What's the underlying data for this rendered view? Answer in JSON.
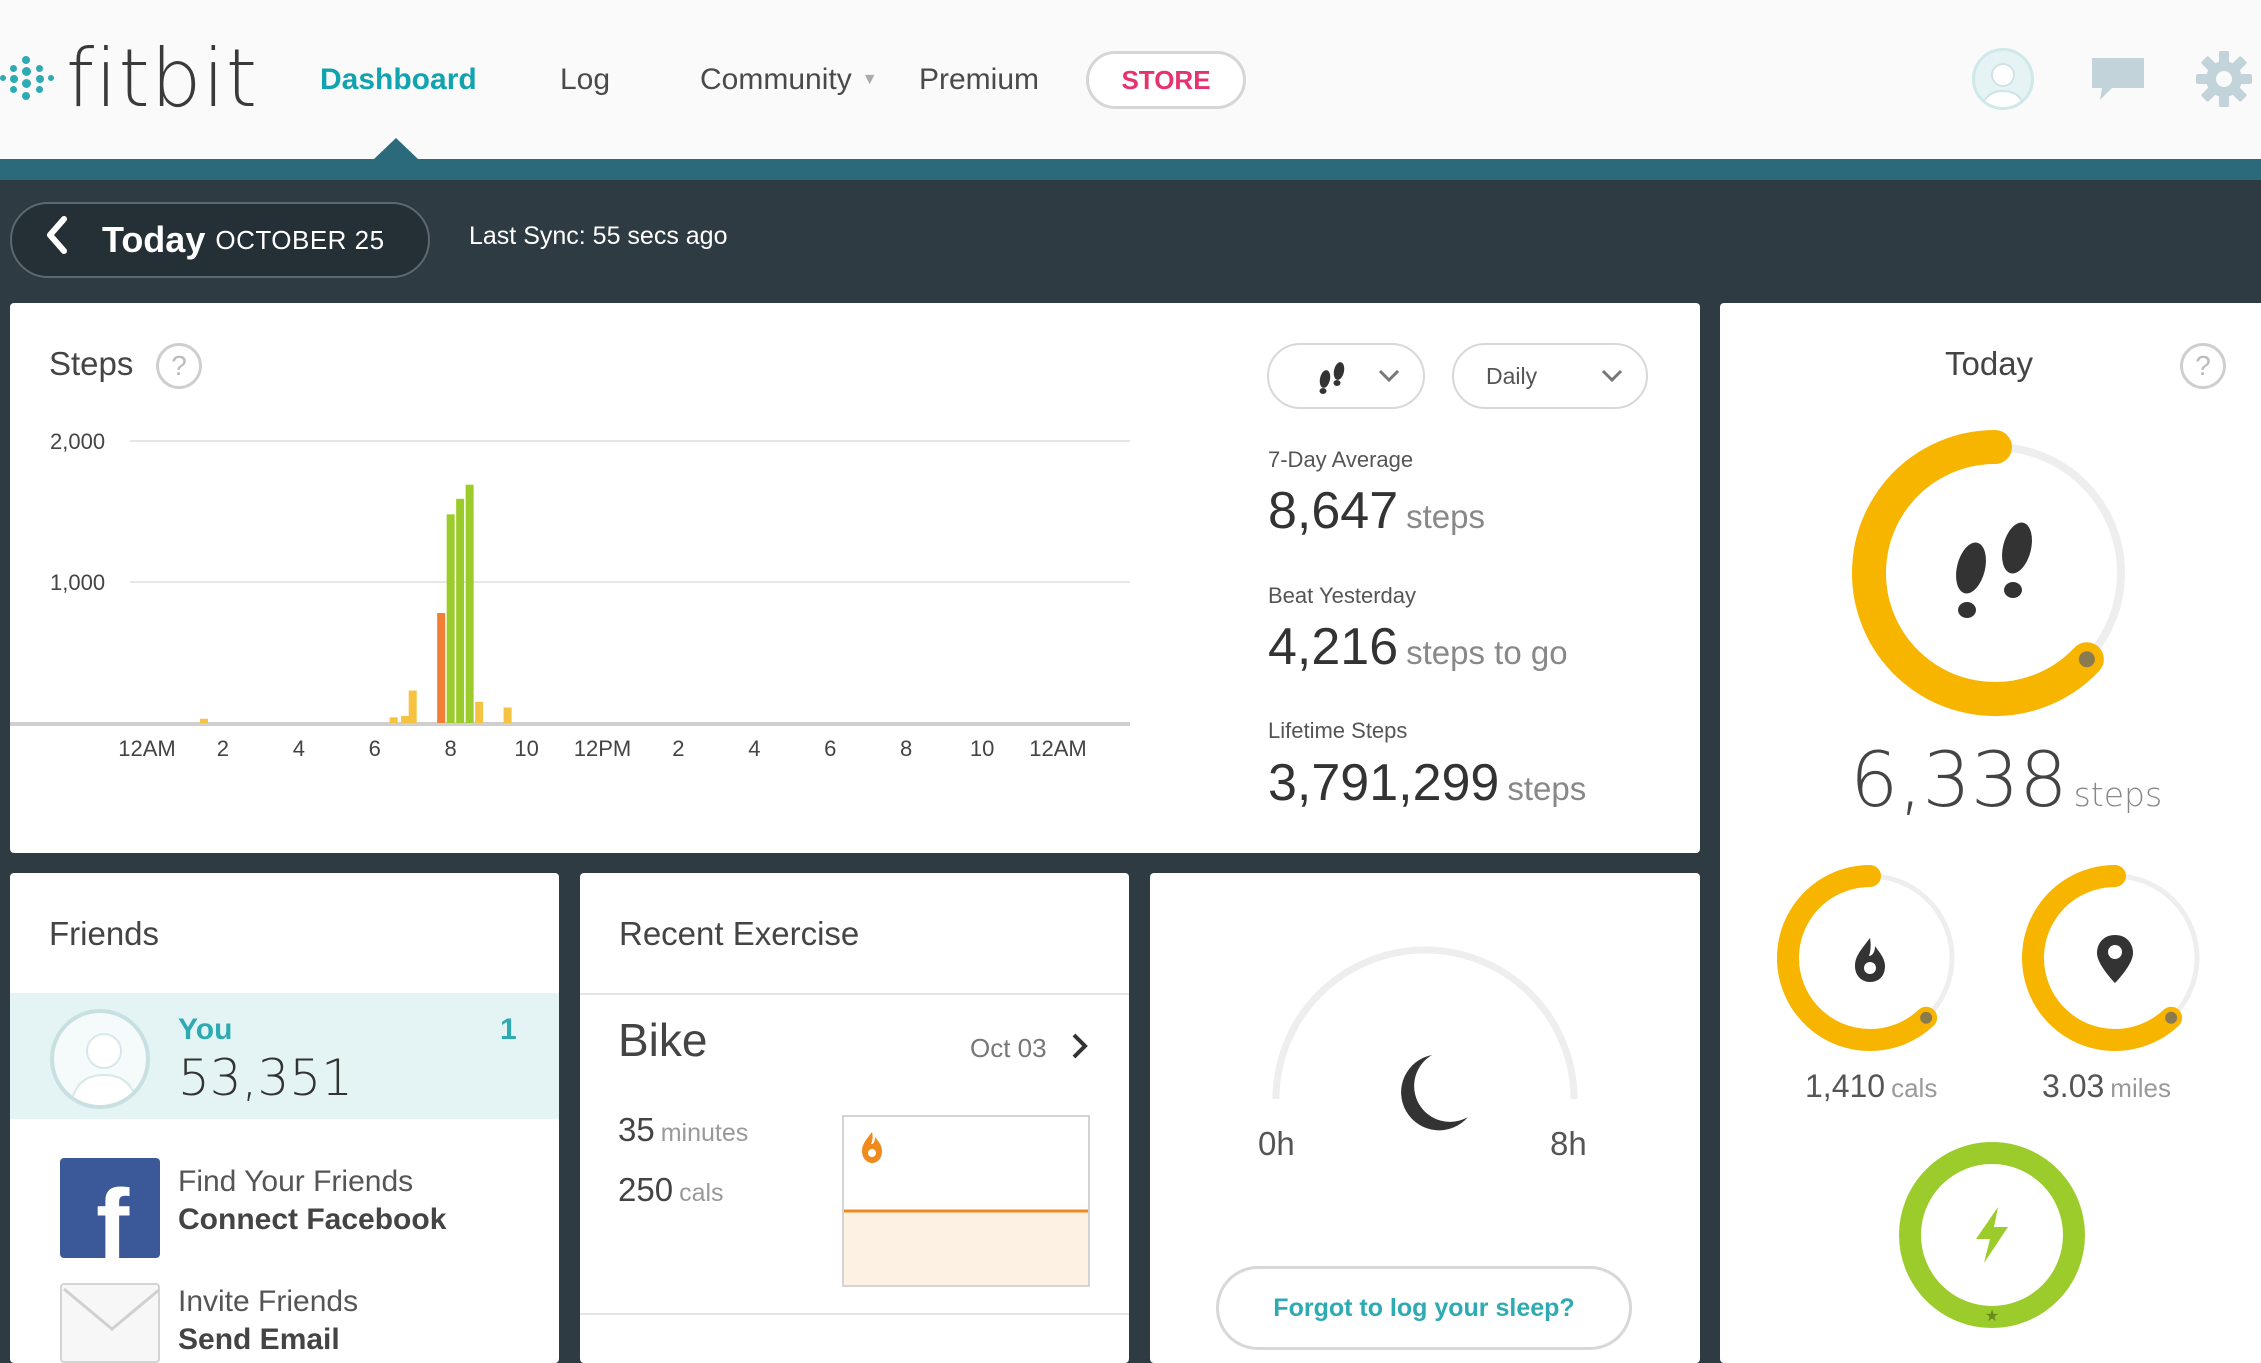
{
  "header": {
    "logo_text": "fitbit",
    "nav": {
      "dashboard": "Dashboard",
      "log": "Log",
      "community": "Community",
      "premium": "Premium",
      "store": "STORE"
    },
    "icons": [
      "avatar-icon",
      "message-icon",
      "gear-icon"
    ]
  },
  "datebar": {
    "back_icon": "chevron-left-icon",
    "today": "Today",
    "date": "OCTOBER 25",
    "last_sync": "Last Sync: 55 secs ago"
  },
  "steps_card": {
    "title": "Steps",
    "help": "?",
    "activity_dropdown_icon": "footsteps-icon",
    "period": "Daily",
    "metrics": [
      {
        "label": "7-Day Average",
        "value": "8,647",
        "unit": "steps"
      },
      {
        "label": "Beat Yesterday",
        "value": "4,216",
        "unit": "steps to go"
      },
      {
        "label": "Lifetime Steps",
        "value": "3,791,299",
        "unit": "steps"
      }
    ]
  },
  "chart_data": {
    "type": "bar",
    "title": "Steps",
    "xlabel": "",
    "ylabel": "",
    "ylim": [
      0,
      2000
    ],
    "y_ticks": [
      "2,000",
      "1,000"
    ],
    "y_tick_values": [
      2000,
      1000
    ],
    "x_tick_labels": [
      "12AM",
      "2",
      "4",
      "6",
      "8",
      "10",
      "12PM",
      "2",
      "4",
      "6",
      "8",
      "10",
      "12AM"
    ],
    "x_tick_hours": [
      0,
      2,
      4,
      6,
      8,
      10,
      12,
      14,
      16,
      18,
      20,
      22,
      24
    ],
    "grid": true,
    "bars": [
      {
        "hour": 1.5,
        "value": 30,
        "color": "#f5c242"
      },
      {
        "hour": 6.5,
        "value": 40,
        "color": "#f5c242"
      },
      {
        "hour": 6.8,
        "value": 50,
        "color": "#f5c242"
      },
      {
        "hour": 7.0,
        "value": 230,
        "color": "#f5c242"
      },
      {
        "hour": 7.75,
        "value": 780,
        "color": "#f07f35"
      },
      {
        "hour": 8.0,
        "value": 1480,
        "color": "#9ccc2c"
      },
      {
        "hour": 8.25,
        "value": 1590,
        "color": "#9ccc2c"
      },
      {
        "hour": 8.5,
        "value": 1690,
        "color": "#9ccc2c"
      },
      {
        "hour": 8.75,
        "value": 150,
        "color": "#f5c242"
      },
      {
        "hour": 9.5,
        "value": 110,
        "color": "#f5c242"
      }
    ]
  },
  "today_card": {
    "title": "Today",
    "help": "?",
    "steps": {
      "value": "6,338",
      "unit": "steps",
      "progress": 0.63
    },
    "calories": {
      "value": "1,410",
      "unit": "cals",
      "progress": 0.62
    },
    "distance": {
      "value": "3.03",
      "unit": "miles",
      "progress": 0.62
    },
    "active_progress": 1.0,
    "colors": {
      "ring_yellow": "#f7b500",
      "ring_green": "#9ccc2c",
      "track": "#eeeeee"
    }
  },
  "friends_card": {
    "title": "Friends",
    "you_label": "You",
    "rank": "1",
    "you_steps": "53,351",
    "find_line1": "Find Your Friends",
    "find_line2": "Connect Facebook",
    "invite_line1": "Invite Friends",
    "invite_line2": "Send Email"
  },
  "exercise_card": {
    "title": "Recent Exercise",
    "name": "Bike",
    "date": "Oct 03",
    "minutes_value": "35",
    "minutes_unit": "minutes",
    "cals_value": "250",
    "cals_unit": "cals"
  },
  "sleep_card": {
    "min_label": "0h",
    "max_label": "8h",
    "button": "Forgot to log your sleep?"
  }
}
